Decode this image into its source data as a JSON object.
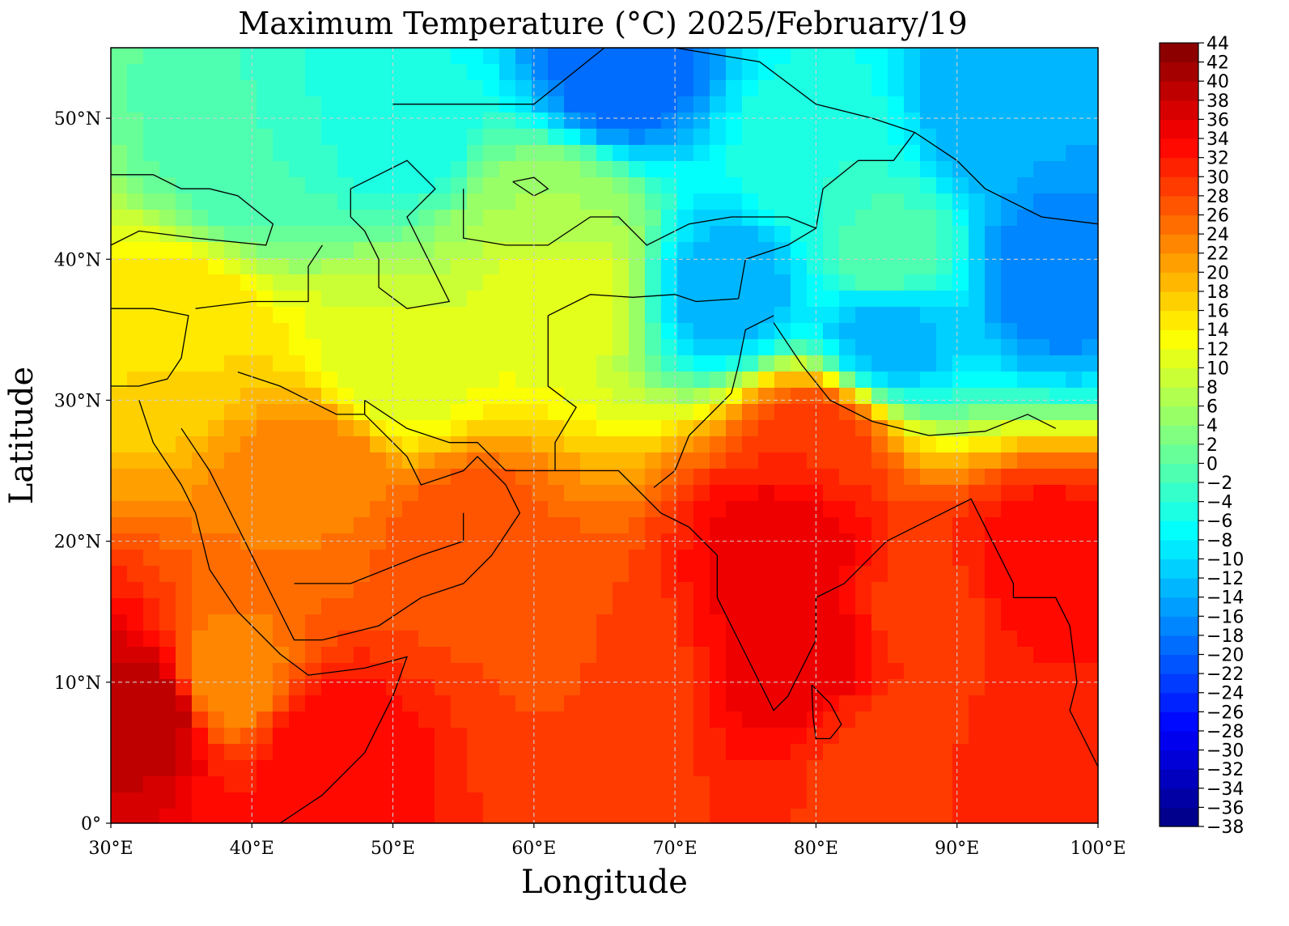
{
  "figure": {
    "title": "Maximum Temperature (°C)  2025/February/19",
    "xlabel": "Longitude",
    "ylabel": "Latitude"
  },
  "map": {
    "lon_range": [
      30,
      100
    ],
    "lat_range": [
      0,
      55
    ],
    "lon_ticks": [
      {
        "value": 30,
        "label": "30°E"
      },
      {
        "value": 40,
        "label": "40°E"
      },
      {
        "value": 50,
        "label": "50°E"
      },
      {
        "value": 60,
        "label": "60°E"
      },
      {
        "value": 70,
        "label": "70°E"
      },
      {
        "value": 80,
        "label": "80°E"
      },
      {
        "value": 90,
        "label": "90°E"
      },
      {
        "value": 100,
        "label": "100°E"
      }
    ],
    "lat_ticks": [
      {
        "value": 0,
        "label": "0°"
      },
      {
        "value": 10,
        "label": "10°N"
      },
      {
        "value": 20,
        "label": "20°N"
      },
      {
        "value": 30,
        "label": "30°N"
      },
      {
        "value": 40,
        "label": "40°N"
      },
      {
        "value": 50,
        "label": "50°N"
      }
    ],
    "grid": true,
    "grid_style": "dashed"
  },
  "colorbar": {
    "min": -38,
    "max": 44,
    "step": 2,
    "orientation": "vertical",
    "placement": "right",
    "colormap": "jet",
    "tick_labels": [
      "−38",
      "−36",
      "−34",
      "−32",
      "−30",
      "−28",
      "−26",
      "−24",
      "−22",
      "−20",
      "−18",
      "−16",
      "−14",
      "−12",
      "−10",
      "−8",
      "−6",
      "−4",
      "−2",
      "0",
      "2",
      "4",
      "6",
      "8",
      "10",
      "12",
      "14",
      "16",
      "18",
      "20",
      "22",
      "24",
      "26",
      "28",
      "30",
      "32",
      "34",
      "36",
      "38",
      "40",
      "42",
      "44"
    ]
  },
  "field_samples": {
    "description_units": "degC",
    "points": [
      {
        "lon": 66,
        "lat": 53,
        "value": -20
      },
      {
        "lon": 93,
        "lat": 50,
        "value": -14
      },
      {
        "lon": 97,
        "lat": 39,
        "value": -18
      },
      {
        "lon": 85,
        "lat": 35,
        "value": -14
      },
      {
        "lon": 74,
        "lat": 38,
        "value": -14
      },
      {
        "lon": 50,
        "lat": 50,
        "value": -6
      },
      {
        "lon": 80,
        "lat": 47,
        "value": -4
      },
      {
        "lon": 40,
        "lat": 47,
        "value": -2
      },
      {
        "lon": 62,
        "lat": 43,
        "value": 6
      },
      {
        "lon": 85,
        "lat": 40,
        "value": 0
      },
      {
        "lon": 62,
        "lat": 38,
        "value": 12
      },
      {
        "lon": 35,
        "lat": 35,
        "value": 16
      },
      {
        "lon": 50,
        "lat": 32,
        "value": 10
      },
      {
        "lon": 45,
        "lat": 25,
        "value": 24
      },
      {
        "lon": 55,
        "lat": 20,
        "value": 28
      },
      {
        "lon": 78,
        "lat": 20,
        "value": 36
      },
      {
        "lon": 79,
        "lat": 12,
        "value": 36
      },
      {
        "lon": 80,
        "lat": 27,
        "value": 30
      },
      {
        "lon": 96,
        "lat": 18,
        "value": 34
      },
      {
        "lon": 33,
        "lat": 8,
        "value": 40
      },
      {
        "lon": 38,
        "lat": 10,
        "value": 22
      },
      {
        "lon": 45,
        "lat": 5,
        "value": 34
      },
      {
        "lon": 65,
        "lat": 10,
        "value": 28
      },
      {
        "lon": 85,
        "lat": 5,
        "value": 29
      },
      {
        "lon": 95,
        "lat": 3,
        "value": 31
      },
      {
        "lon": 88,
        "lat": 15,
        "value": 29
      }
    ]
  }
}
